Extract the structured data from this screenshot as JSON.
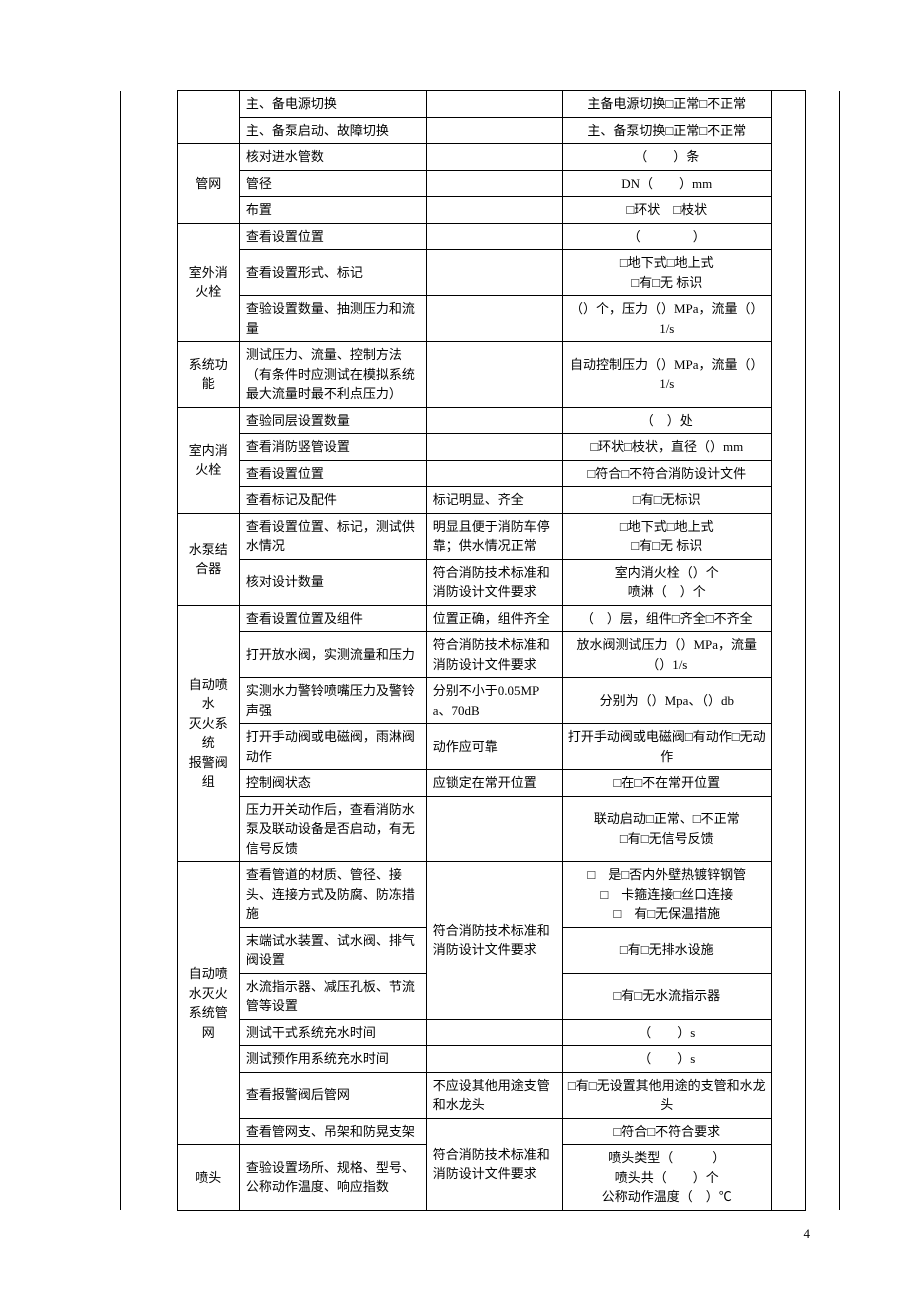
{
  "page_number": "4",
  "rows": [
    {
      "g": "",
      "c2": "主、备电源切换",
      "c3": "",
      "c4": "主备电源切换□正常□不正常"
    },
    {
      "c2": "主、备泵启动、故障切换",
      "c3": "",
      "c4": "主、备泵切换□正常□不正常"
    },
    {
      "g": "管网",
      "gr": 3,
      "c2": "核对进水管数",
      "c3": "",
      "c4": "（　　）条"
    },
    {
      "c2": "管径",
      "c3": "",
      "c4": "DN（　　）mm"
    },
    {
      "c2": "布置",
      "c3": "",
      "c4": "□环状　□枝状"
    },
    {
      "g": "室外消火栓",
      "gr": 3,
      "c2": "查看设置位置",
      "c3": "",
      "c4": "（　　　　）"
    },
    {
      "c2": "查看设置形式、标记",
      "c3": "",
      "c4": "□地下式□地上式\n□有□无 标识"
    },
    {
      "c2": "查验设置数量、抽测压力和流量",
      "c3": "",
      "c4": "（）个，压力（）MPa，流量（）1/s"
    },
    {
      "g": "系统功能",
      "gr": 1,
      "c2": "测试压力、流量、控制方法（有条件时应测试在模拟系统最大流量时最不利点压力）",
      "c3": "",
      "c4": "自动控制压力（）MPa，流量（）1/s"
    },
    {
      "g": "室内消火栓",
      "gr": 4,
      "c2": "查验同层设置数量",
      "c3": "",
      "c4": "（　）处"
    },
    {
      "c2": "查看消防竖管设置",
      "c3": "",
      "c4": "□环状□枝状，直径（）mm"
    },
    {
      "c2": "查看设置位置",
      "c3": "",
      "c4": "□符合□不符合消防设计文件"
    },
    {
      "c2": "查看标记及配件",
      "c3": "标记明显、齐全",
      "c4": "□有□无标识"
    },
    {
      "g": "水泵结合器",
      "gr": 2,
      "c2": "查看设置位置、标记，测试供水情况",
      "c3": "明显且便于消防车停靠；供水情况正常",
      "c4": "□地下式□地上式\n□有□无 标识"
    },
    {
      "c2": "核对设计数量",
      "c3": "符合消防技术标准和消防设计文件要求",
      "c4": "室内消火栓（）个\n喷淋（　）个"
    },
    {
      "g": "自动喷水\n灭火系统\n报警阀组",
      "gr": 6,
      "c2": "查看设置位置及组件",
      "c3": "位置正确，组件齐全",
      "c4": "（　）层，组件□齐全□不齐全"
    },
    {
      "c2": "打开放水阀，实测流量和压力",
      "c3": "符合消防技术标准和消防设计文件要求",
      "c4": "放水阀测试压力（）MPa，流量（）1/s"
    },
    {
      "c2": "实测水力警铃喷嘴压力及警铃声强",
      "c3": "分别不小于0.05MPa、70dB",
      "c4": "分别为（）Mpa、（）db"
    },
    {
      "c2": "打开手动阀或电磁阀，雨淋阀动作",
      "c3": "动作应可靠",
      "c4": "打开手动阀或电磁阀□有动作□无动作"
    },
    {
      "c2": "控制阀状态",
      "c3": "应锁定在常开位置",
      "c4": "□在□不在常开位置"
    },
    {
      "c2": "压力开关动作后，查看消防水泵及联动设备是否启动，有无信号反馈",
      "c3": "",
      "c4": "联动启动□正常、□不正常\n□有□无信号反馈"
    },
    {
      "g": "自动喷水灭火系统管网",
      "gr": 7,
      "c2": "查看管道的材质、管径、接头、连接方式及防腐、防冻措施",
      "c3": "符合消防技术标准和消防设计文件要求",
      "c3r": 3,
      "c4": "□　是□否内外壁热镀锌钢管\n□　卡箍连接□丝口连接\n□　有□无保温措施"
    },
    {
      "c2": "末端试水装置、试水阀、排气阀设置",
      "c4": "□有□无排水设施"
    },
    {
      "c2": "水流指示器、减压孔板、节流管等设置",
      "c4": "□有□无水流指示器"
    },
    {
      "c2": "测试干式系统充水时间",
      "c3": "",
      "c4": "（　　）s"
    },
    {
      "c2": "测试预作用系统充水时间",
      "c3": "",
      "c4": "（　　）s"
    },
    {
      "c2": "查看报警阀后管网",
      "c3": "不应设其他用途支管和水龙头",
      "c4": "□有□无设置其他用途的支管和水龙头"
    },
    {
      "c2": "查看管网支、吊架和防晃支架",
      "c3": "符合消防技术标准和消防设计文件要求",
      "c3r": 2,
      "c4": "□符合□不符合要求"
    },
    {
      "g": "喷头",
      "gr": 1,
      "c2": "查验设置场所、规格、型号、公称动作温度、响应指数",
      "c4": "喷头类型（　　　）\n喷头共（　　）个\n公称动作温度（　）℃"
    }
  ]
}
